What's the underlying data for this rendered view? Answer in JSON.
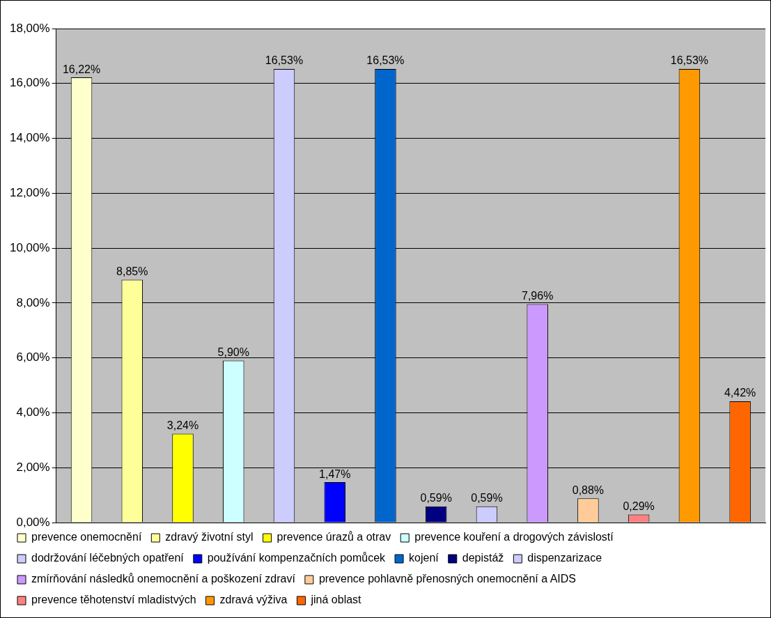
{
  "chart_data": {
    "type": "bar",
    "categories": [
      null,
      null,
      null,
      null,
      null,
      null,
      null,
      null,
      null,
      null,
      null,
      null,
      null,
      null
    ],
    "series": [
      {
        "name": "prevence onemocnění",
        "color": "#ffffcc",
        "values": [
          16.22,
          null,
          null,
          null,
          null,
          null,
          null,
          null,
          null,
          null,
          null,
          null,
          null,
          null
        ]
      },
      {
        "name": "zdravý životní styl",
        "color": "#ffff99",
        "values": [
          null,
          8.85,
          null,
          null,
          null,
          null,
          null,
          null,
          null,
          null,
          null,
          null,
          null,
          null
        ]
      },
      {
        "name": "prevence úrazů a otrav",
        "color": "#ffff00",
        "values": [
          null,
          null,
          3.24,
          null,
          null,
          null,
          null,
          null,
          null,
          null,
          null,
          null,
          null,
          null
        ]
      },
      {
        "name": "prevence kouření a drogových závislostí",
        "color": "#ccffff",
        "values": [
          null,
          null,
          null,
          5.9,
          null,
          null,
          null,
          null,
          null,
          null,
          null,
          null,
          null,
          null
        ]
      },
      {
        "name": "dodržování léčebných opatření",
        "color": "#ccccff",
        "values": [
          null,
          null,
          null,
          null,
          16.53,
          null,
          null,
          null,
          null,
          null,
          null,
          null,
          null,
          null
        ]
      },
      {
        "name": "používání kompenzačních pomůcek",
        "color": "#0000ff",
        "values": [
          null,
          null,
          null,
          null,
          null,
          1.47,
          null,
          null,
          null,
          null,
          null,
          null,
          null,
          null
        ]
      },
      {
        "name": "kojení",
        "color": "#0066cc",
        "values": [
          null,
          null,
          null,
          null,
          null,
          null,
          16.53,
          null,
          null,
          null,
          null,
          null,
          null,
          null
        ]
      },
      {
        "name": "depistáž",
        "color": "#000080",
        "values": [
          null,
          null,
          null,
          null,
          null,
          null,
          null,
          0.59,
          null,
          null,
          null,
          null,
          null,
          null
        ]
      },
      {
        "name": "dispenzarizace",
        "color": "#ccccff",
        "values": [
          null,
          null,
          null,
          null,
          null,
          null,
          null,
          null,
          0.59,
          null,
          null,
          null,
          null,
          null
        ]
      },
      {
        "name": "zmírňování následků onemocnění a poškození zdraví",
        "color": "#cc99ff",
        "values": [
          null,
          null,
          null,
          null,
          null,
          null,
          null,
          null,
          null,
          7.96,
          null,
          null,
          null,
          null
        ]
      },
      {
        "name": "prevence pohlavně přenosných onemocnění a AIDS",
        "color": "#ffcc99",
        "values": [
          null,
          null,
          null,
          null,
          null,
          null,
          null,
          null,
          null,
          null,
          0.88,
          null,
          null,
          null
        ]
      },
      {
        "name": "prevence těhotenství mladistvých",
        "color": "#ff8080",
        "values": [
          null,
          null,
          null,
          null,
          null,
          null,
          null,
          null,
          null,
          null,
          null,
          0.29,
          null,
          null
        ]
      },
      {
        "name": "zdravá výživa",
        "color": "#ff9900",
        "values": [
          null,
          null,
          null,
          null,
          null,
          null,
          null,
          null,
          null,
          null,
          null,
          null,
          16.53,
          null
        ]
      },
      {
        "name": "jiná oblast",
        "color": "#ff6600",
        "values": [
          null,
          null,
          null,
          null,
          null,
          null,
          null,
          null,
          null,
          null,
          null,
          null,
          null,
          4.42
        ]
      }
    ],
    "value_labels": [
      "16,22%",
      "8,85%",
      "3,24%",
      "5,90%",
      "16,53%",
      "1,47%",
      "16,53%",
      "0,59%",
      "0,59%",
      "7,96%",
      "0,88%",
      "0,29%",
      "16,53%",
      "4,42%"
    ],
    "ylim": [
      0,
      18
    ],
    "yticks": [
      {
        "value": 0,
        "label": "0,00%"
      },
      {
        "value": 2,
        "label": "2,00%"
      },
      {
        "value": 4,
        "label": "4,00%"
      },
      {
        "value": 6,
        "label": "6,00%"
      },
      {
        "value": 8,
        "label": "8,00%"
      },
      {
        "value": 10,
        "label": "10,00%"
      },
      {
        "value": 12,
        "label": "12,00%"
      },
      {
        "value": 14,
        "label": "14,00%"
      },
      {
        "value": 16,
        "label": "16,00%"
      },
      {
        "value": 18,
        "label": "18,00%"
      }
    ],
    "grid": "y",
    "legend": "bottom",
    "tick_labels": "y"
  }
}
